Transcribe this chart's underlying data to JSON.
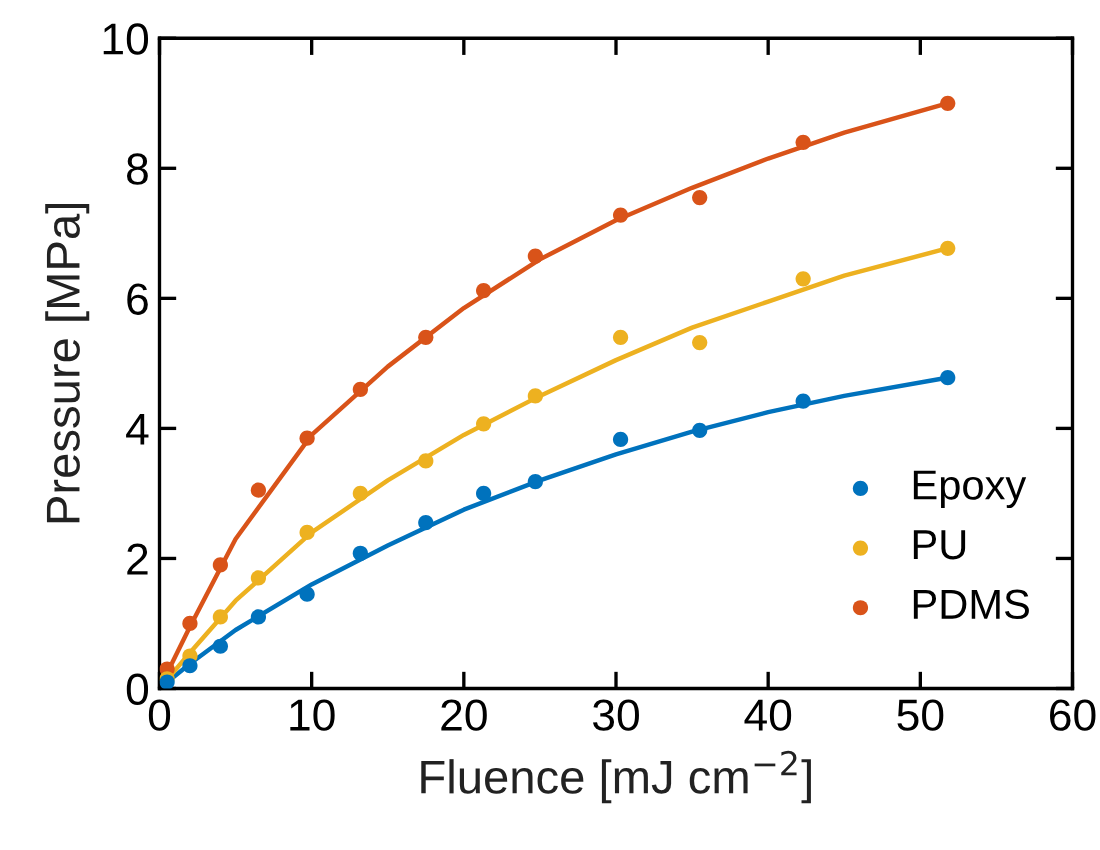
{
  "chart_data": {
    "type": "scatter",
    "xlabel": "Fluence [mJ cm$^{−2}$]",
    "ylabel": "Pressure [MPa]",
    "xlim": [
      0,
      60
    ],
    "ylim": [
      0,
      10
    ],
    "xticks": [
      0,
      10,
      20,
      30,
      40,
      50,
      60
    ],
    "yticks": [
      0,
      2,
      4,
      6,
      8,
      10
    ],
    "grid": false,
    "legend": "bottom right",
    "series": [
      {
        "name": "Epoxy",
        "color": "#0072bd",
        "marker": "circle",
        "x": [
          0.5,
          2,
          4,
          6.5,
          9.7,
          13.2,
          17.5,
          21.3,
          24.7,
          30.3,
          35.5,
          42.3,
          51.8
        ],
        "values": [
          0.1,
          0.35,
          0.65,
          1.1,
          1.45,
          2.08,
          2.55,
          3.0,
          3.18,
          3.83,
          3.97,
          4.42,
          4.78
        ]
      },
      {
        "name": "PU",
        "color": "#edb120",
        "marker": "circle",
        "x": [
          0.5,
          2,
          4,
          6.5,
          9.7,
          13.2,
          17.5,
          21.3,
          24.7,
          30.3,
          35.5,
          42.3,
          51.8
        ],
        "values": [
          0.15,
          0.5,
          1.1,
          1.7,
          2.4,
          3.0,
          3.5,
          4.07,
          4.5,
          5.4,
          5.32,
          6.3,
          6.77
        ]
      },
      {
        "name": "PDMS",
        "color": "#d95319",
        "marker": "circle",
        "x": [
          0.5,
          2,
          4,
          6.5,
          9.7,
          13.2,
          17.5,
          21.3,
          24.7,
          30.3,
          35.5,
          42.3,
          51.8
        ],
        "values": [
          0.3,
          1.0,
          1.9,
          3.05,
          3.85,
          4.6,
          5.4,
          6.12,
          6.65,
          7.28,
          7.55,
          8.4,
          9.0
        ]
      },
      {
        "type": "line",
        "color": "#0072bd",
        "x": [
          0,
          2,
          5,
          10,
          15,
          20,
          25,
          30,
          35,
          40,
          45,
          51.8
        ],
        "values": [
          0,
          0.38,
          0.9,
          1.6,
          2.2,
          2.75,
          3.2,
          3.6,
          3.95,
          4.25,
          4.5,
          4.78
        ]
      },
      {
        "type": "line",
        "color": "#edb120",
        "x": [
          0,
          2,
          5,
          10,
          15,
          20,
          25,
          30,
          35,
          40,
          45,
          51.8
        ],
        "values": [
          0,
          0.55,
          1.35,
          2.4,
          3.2,
          3.9,
          4.5,
          5.05,
          5.55,
          5.95,
          6.35,
          6.77
        ]
      },
      {
        "type": "line",
        "color": "#d95319",
        "x": [
          0,
          2,
          5,
          10,
          15,
          20,
          25,
          30,
          35,
          40,
          45,
          51.8
        ],
        "values": [
          0,
          0.95,
          2.3,
          3.9,
          4.95,
          5.85,
          6.6,
          7.2,
          7.7,
          8.15,
          8.55,
          9.0
        ]
      }
    ]
  }
}
